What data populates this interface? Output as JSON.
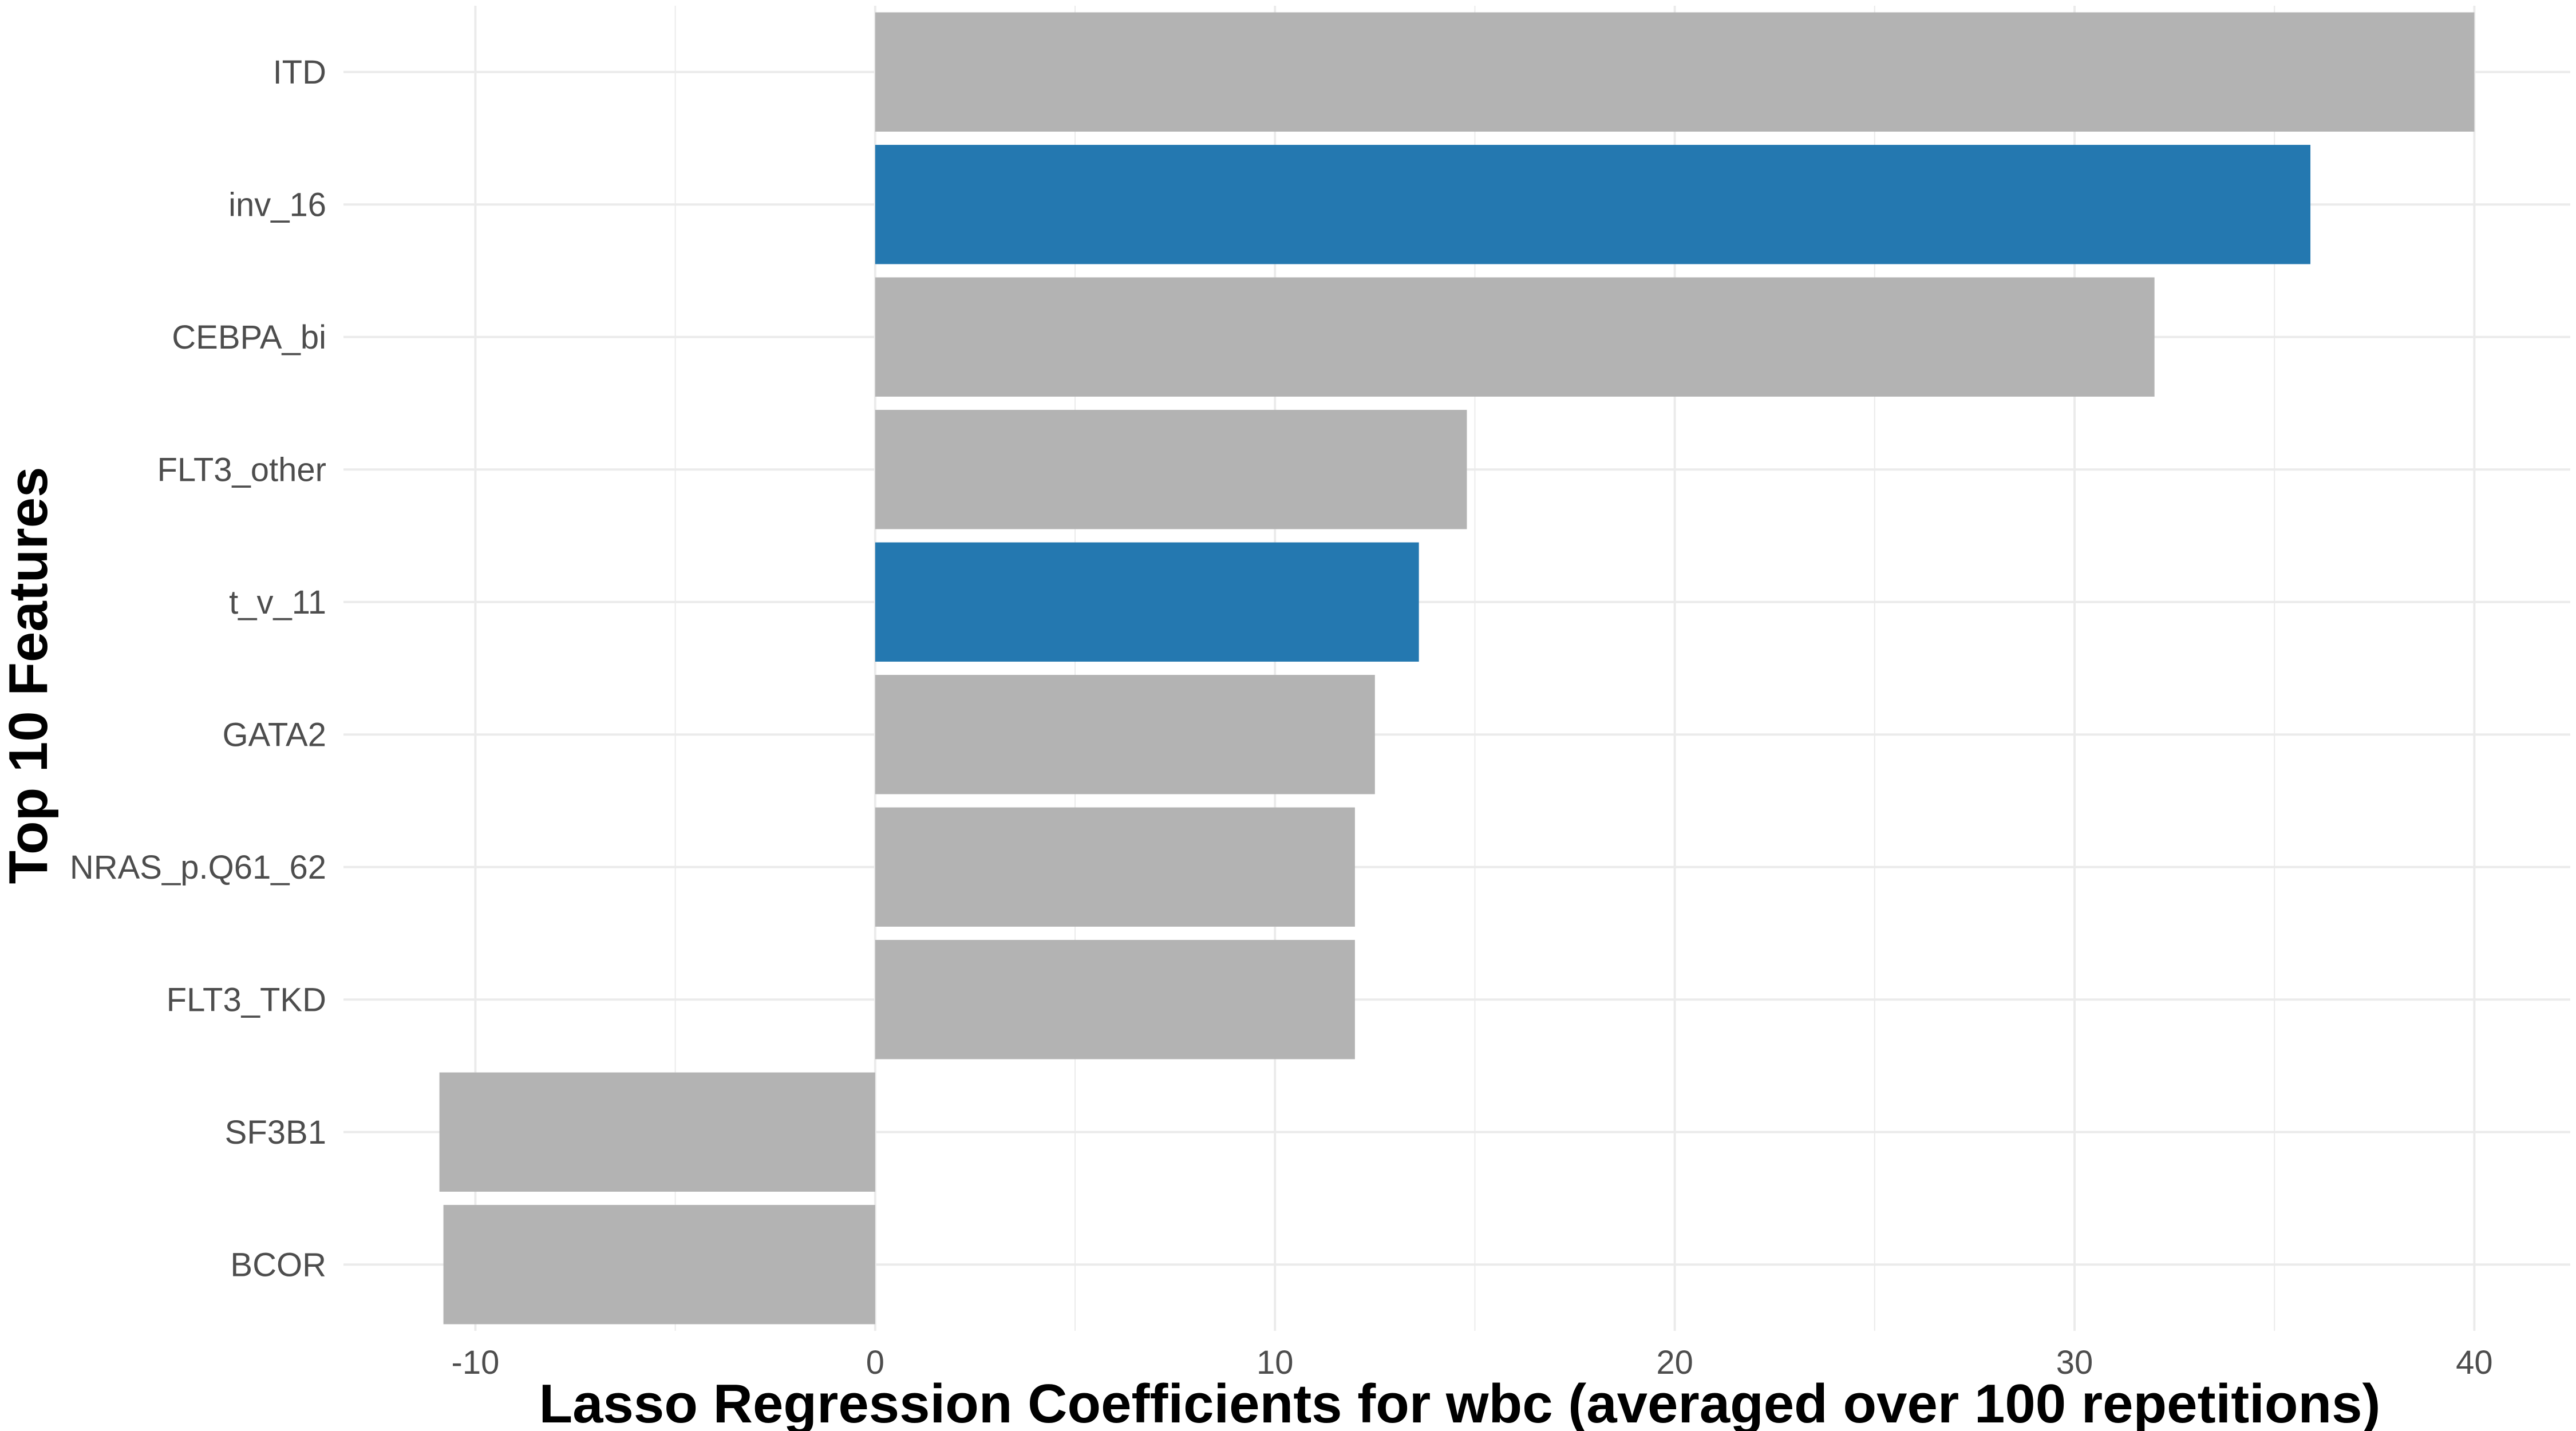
{
  "chart_data": {
    "type": "bar",
    "orientation": "horizontal",
    "title": "",
    "xlabel": "Lasso Regression Coefficients for wbc (averaged over 100 repetitions)",
    "ylabel": "Top 10 Features",
    "xlim": [
      -13.3,
      42.4
    ],
    "x_ticks": [
      -10,
      0,
      10,
      20,
      30,
      40
    ],
    "grid": true,
    "legend": "none",
    "colors": {
      "default": "#b3b3b3",
      "highlight": "#2478b0",
      "grid": "#ebebeb"
    },
    "categories": [
      "ITD",
      "inv_16",
      "CEBPA_bi",
      "FLT3_other",
      "t_v_11",
      "GATA2",
      "NRAS_p.Q61_62",
      "FLT3_TKD",
      "SF3B1",
      "BCOR"
    ],
    "values": [
      40.0,
      35.9,
      32.0,
      14.8,
      13.6,
      12.5,
      12.0,
      12.0,
      -10.9,
      -10.8
    ],
    "highlighted": [
      false,
      true,
      false,
      false,
      true,
      false,
      false,
      false,
      false,
      false
    ]
  }
}
